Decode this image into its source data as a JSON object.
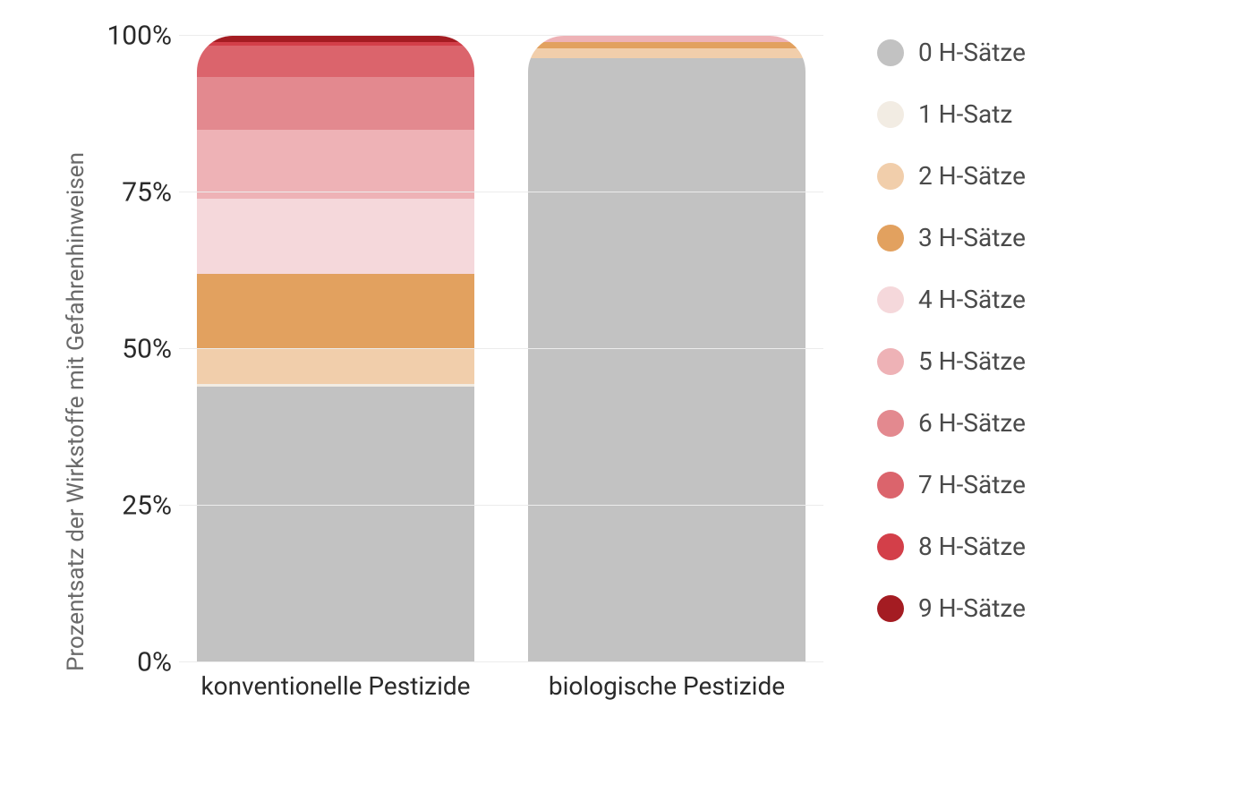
{
  "chart": {
    "type": "stacked-bar-percent",
    "y_axis_label": "Prozentsatz der Wirkstoffe mit Gefahrenhinweisen",
    "y_ticks": [
      0,
      25,
      50,
      75,
      100
    ],
    "y_tick_suffix": "%",
    "ylim": [
      0,
      100
    ],
    "grid_color": "#ececec",
    "background_color": "#ffffff",
    "tick_fontsize": 30,
    "tick_color": "#2a2a2a",
    "axis_label_color": "#6a6a6a",
    "axis_label_fontsize": 26,
    "bar_border_radius": 40,
    "categories": [
      {
        "label": "konventionelle Pestizide",
        "values": [
          44,
          0.5,
          5.5,
          12,
          12,
          11,
          8.5,
          5,
          0.5,
          1
        ]
      },
      {
        "label": "biologische Pestizide",
        "values": [
          96.5,
          0,
          1.5,
          1,
          0,
          1,
          0,
          0,
          0,
          0
        ]
      }
    ],
    "series": [
      {
        "label": "0 H-Sätze",
        "color": "#c2c2c2"
      },
      {
        "label": "1 H-Satz",
        "color": "#f2ece3"
      },
      {
        "label": "2 H-Sätze",
        "color": "#f1ceab"
      },
      {
        "label": "3 H-Sätze",
        "color": "#e2a15f"
      },
      {
        "label": "4 H-Sätze",
        "color": "#f5d8db"
      },
      {
        "label": "5 H-Sätze",
        "color": "#eeb2b6"
      },
      {
        "label": "6 H-Sätze",
        "color": "#e3898f"
      },
      {
        "label": "7 H-Sätze",
        "color": "#db646c"
      },
      {
        "label": "8 H-Sätze",
        "color": "#d33f49"
      },
      {
        "label": "9 H-Sätze",
        "color": "#a41c22"
      }
    ],
    "legend_fontsize": 28,
    "legend_color": "#4a4a4a",
    "x_label_fontsize": 28
  }
}
